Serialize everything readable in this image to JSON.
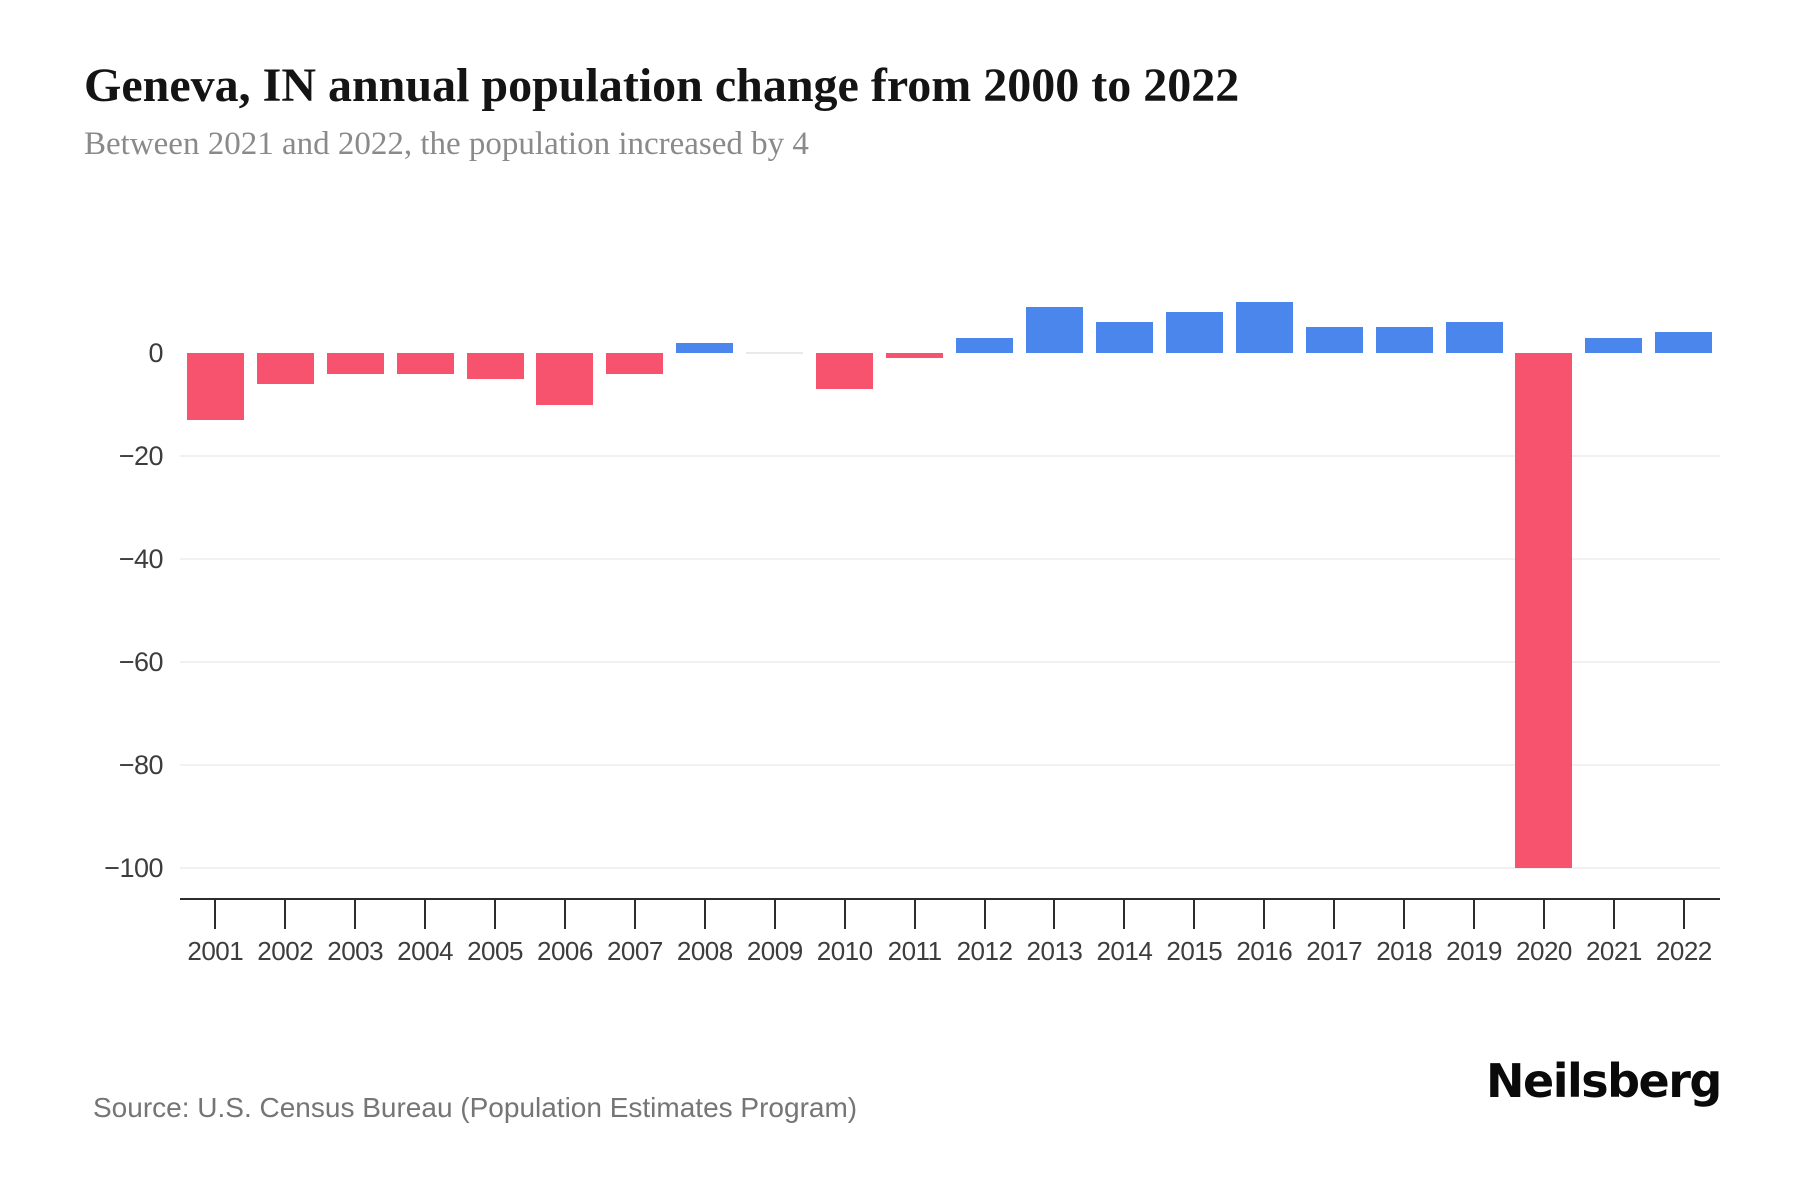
{
  "header": {
    "title": "Geneva, IN annual population change from 2000 to 2022",
    "subtitle": "Between 2021 and 2022, the population increased by 4"
  },
  "footer": {
    "source": "Source: U.S. Census Bureau (Population Estimates Program)",
    "brand": "Neilsberg"
  },
  "chart_data": {
    "type": "bar",
    "title": "Geneva, IN annual population change from 2000 to 2022",
    "categories": [
      "2001",
      "2002",
      "2003",
      "2004",
      "2005",
      "2006",
      "2007",
      "2008",
      "2009",
      "2010",
      "2011",
      "2012",
      "2013",
      "2014",
      "2015",
      "2016",
      "2017",
      "2018",
      "2019",
      "2020",
      "2021",
      "2022"
    ],
    "values": [
      -13,
      -6,
      -4,
      -4,
      -5,
      -10,
      -4,
      2,
      0,
      -7,
      -1,
      3,
      9,
      6,
      8,
      10,
      5,
      5,
      6,
      -100,
      3,
      4
    ],
    "xlabel": "",
    "ylabel": "",
    "ylim": [
      -106,
      12
    ],
    "y_ticks": [
      {
        "value": 0,
        "label": "0"
      },
      {
        "value": -20,
        "label": "−20"
      },
      {
        "value": -40,
        "label": "−40"
      },
      {
        "value": -60,
        "label": "−60"
      },
      {
        "value": -80,
        "label": "−80"
      },
      {
        "value": -100,
        "label": "−100"
      }
    ],
    "grid": "horizontal",
    "legend": "none",
    "colors": {
      "positive": "#4b86ec",
      "negative": "#f8536e",
      "zero": "#e9e9e9",
      "gridline": "#f1f1f1",
      "axis": "#2d2d2d",
      "tick_label": "#3d3d3d"
    }
  }
}
